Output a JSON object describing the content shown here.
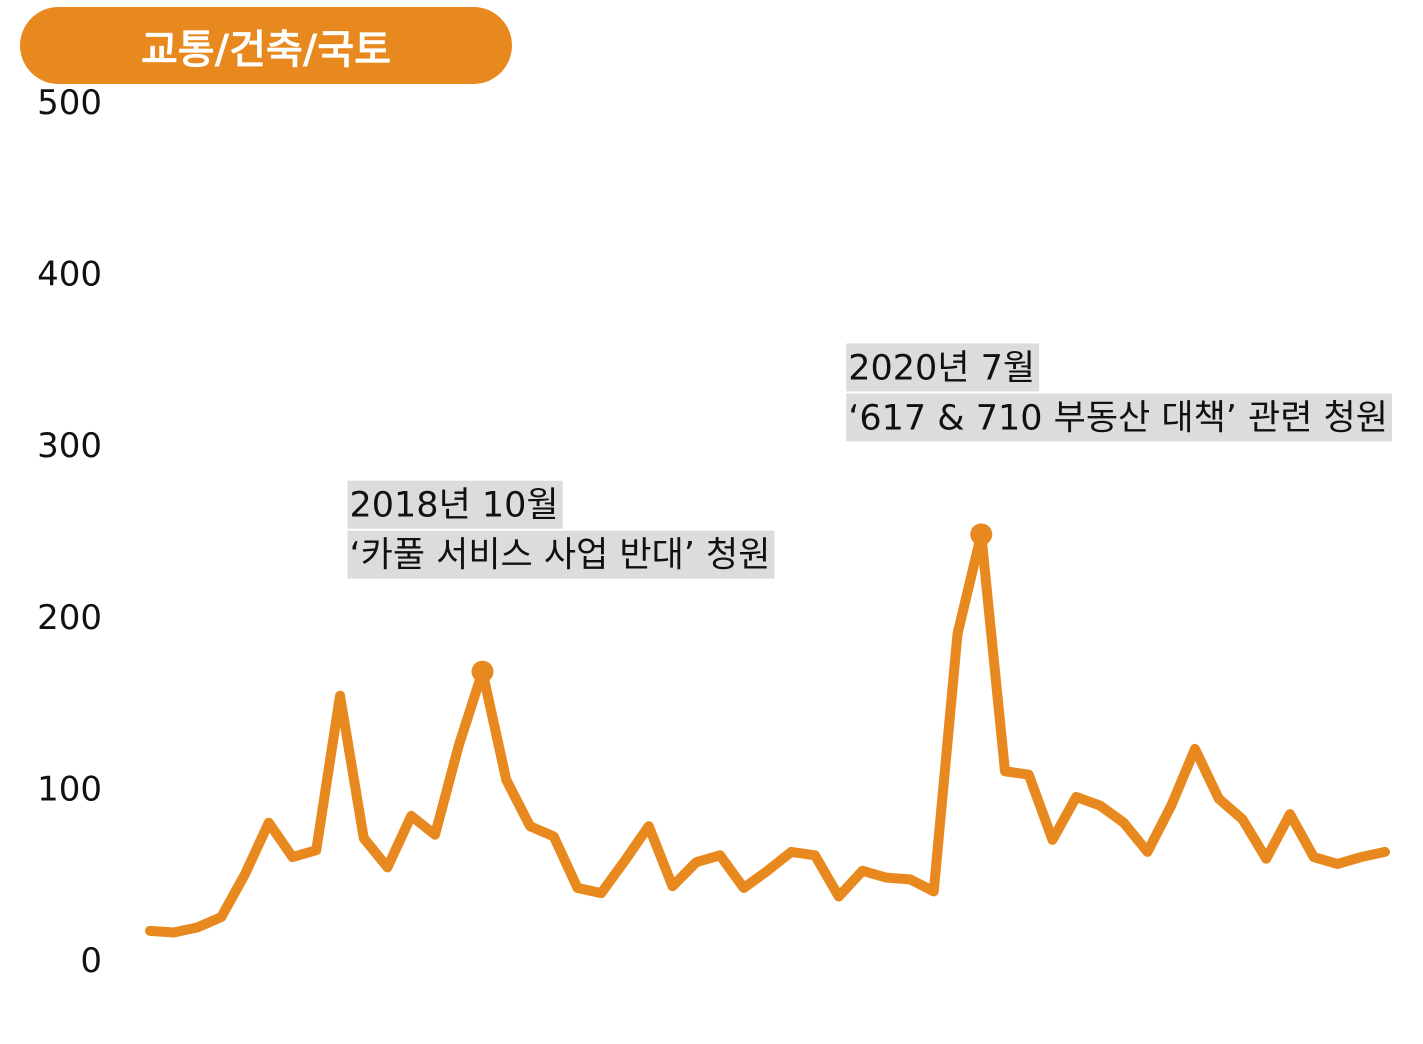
{
  "header": {
    "title": "교통/건축/국토"
  },
  "colors": {
    "accent": "#E8891F",
    "label_bg": "#DCDCDC"
  },
  "chart_data": {
    "type": "line",
    "title": "교통/건축/국토",
    "xlabel": "",
    "ylabel": "",
    "ylim": [
      0,
      500
    ],
    "yticks": [
      0,
      100,
      200,
      300,
      400,
      500
    ],
    "grid": false,
    "legend": "none",
    "series": [
      {
        "values": [
          17,
          16,
          19,
          25,
          50,
          80,
          60,
          64,
          154,
          71,
          54,
          84,
          73,
          125,
          168,
          105,
          78,
          72,
          42,
          39,
          58,
          78,
          43,
          57,
          61,
          42,
          52,
          63,
          61,
          37,
          52,
          48,
          47,
          40,
          190,
          248,
          110,
          108,
          70,
          95,
          90,
          80,
          63,
          90,
          123,
          94,
          82,
          59,
          85,
          60,
          56,
          60,
          63
        ]
      }
    ],
    "annotations": [
      {
        "index": 14,
        "value": 168,
        "lines": [
          "2018년 10월",
          "‘카풀 서비스 사업 반대’ 청원"
        ]
      },
      {
        "index": 35,
        "value": 248,
        "lines": [
          "2020년 7월",
          "‘617 & 710 부동산 대책’ 관련 청원"
        ]
      }
    ]
  }
}
